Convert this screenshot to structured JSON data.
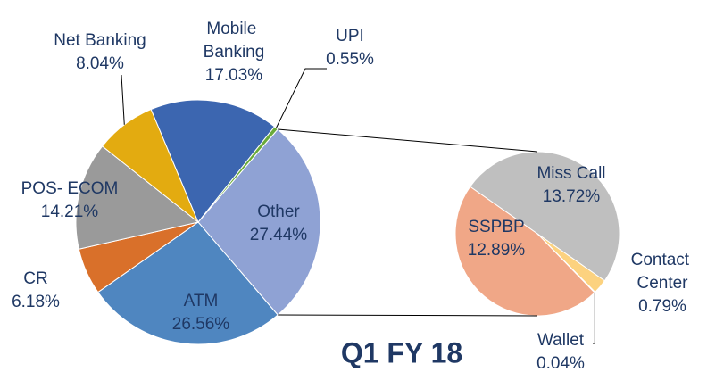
{
  "chart_data": {
    "type": "pie-of-pie",
    "title": "Q1 FY 18",
    "series": [
      {
        "name": "Main",
        "categories": [
          "Other",
          "ATM",
          "CR",
          "POS- ECOM",
          "Net Banking",
          "Mobile Banking",
          "UPI"
        ],
        "values": [
          27.44,
          26.56,
          6.18,
          14.21,
          8.04,
          17.03,
          0.55
        ],
        "value_labels": [
          "27.44%",
          "26.56%",
          "6.18%",
          "14.21%",
          "8.04%",
          "17.03%",
          "0.55%"
        ],
        "colors": [
          "#8fa2d4",
          "#4f86c0",
          "#d9702a",
          "#9a9a9a",
          "#e3ab10",
          "#3c66b0",
          "#6aaa3a"
        ]
      },
      {
        "name": "Other",
        "categories": [
          "Miss Call",
          "Contact Center",
          "Wallet",
          "SSPBP"
        ],
        "values": [
          13.72,
          0.79,
          0.04,
          12.89
        ],
        "value_labels": [
          "13.72%",
          "0.79%",
          "0.04%",
          "12.89%"
        ],
        "colors": [
          "#bfbfbf",
          "#fcd27f",
          "#7f9fd0",
          "#f0a787"
        ]
      }
    ]
  }
}
